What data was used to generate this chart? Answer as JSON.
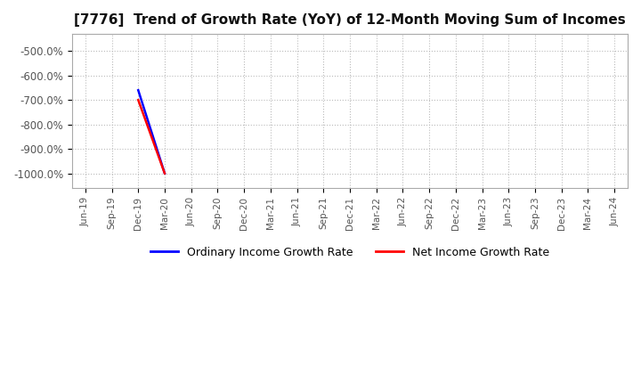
{
  "title": "[7776]  Trend of Growth Rate (YoY) of 12-Month Moving Sum of Incomes",
  "title_fontsize": 11,
  "background_color": "#ffffff",
  "plot_background_color": "#ffffff",
  "grid_color": "#bbbbbb",
  "ylim": [
    -1060,
    -430
  ],
  "yticks": [
    -1000,
    -900,
    -800,
    -700,
    -600,
    -500
  ],
  "ordinary_income_color": "#0000ff",
  "net_income_color": "#ff0000",
  "line_width": 1.8,
  "legend_labels": [
    "Ordinary Income Growth Rate",
    "Net Income Growth Rate"
  ],
  "x_dates": [
    "Jun-19",
    "Sep-19",
    "Dec-19",
    "Mar-20",
    "Jun-20",
    "Sep-20",
    "Dec-20",
    "Mar-21",
    "Jun-21",
    "Sep-21",
    "Dec-21",
    "Mar-22",
    "Jun-22",
    "Sep-22",
    "Dec-22",
    "Mar-23",
    "Jun-23",
    "Sep-23",
    "Dec-23",
    "Mar-24",
    "Jun-24"
  ],
  "ordinary_income_data": [
    null,
    null,
    -660,
    -1000,
    null,
    null,
    null,
    null,
    null,
    null,
    null,
    null,
    null,
    null,
    null,
    null,
    null,
    null,
    null,
    null,
    null
  ],
  "net_income_data": [
    null,
    null,
    -700,
    -1000,
    null,
    null,
    null,
    null,
    null,
    null,
    null,
    null,
    null,
    null,
    null,
    null,
    null,
    null,
    null,
    null,
    null
  ]
}
